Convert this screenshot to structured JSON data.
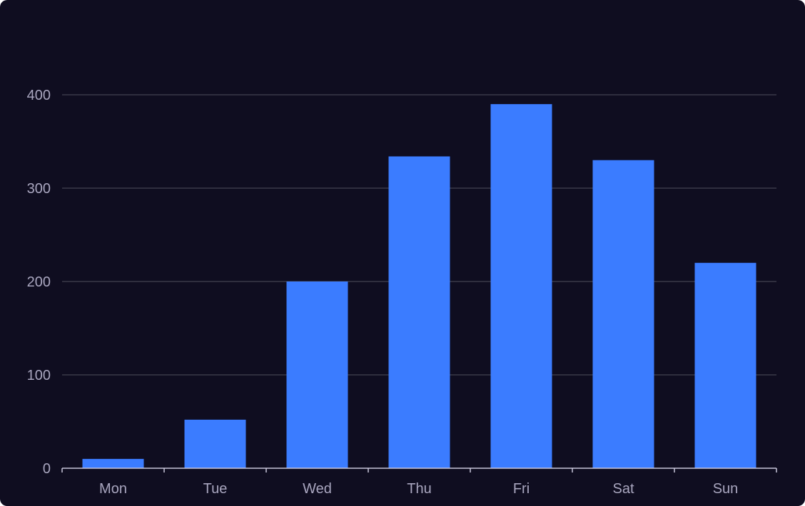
{
  "colors": {
    "background": "#0f0d20",
    "bar": "#3b7cff",
    "grid": "#3a3a48",
    "axis": "#c9c6db",
    "tick_text": "#a9a6bf"
  },
  "chart_data": {
    "type": "bar",
    "categories": [
      "Mon",
      "Tue",
      "Wed",
      "Thu",
      "Fri",
      "Sat",
      "Sun"
    ],
    "values": [
      10,
      52,
      200,
      334,
      390,
      330,
      220
    ],
    "ylim": [
      0,
      400
    ],
    "yticks": [
      0,
      100,
      200,
      300,
      400
    ],
    "ytick_labels": [
      "0",
      "100",
      "200",
      "300",
      "400"
    ],
    "grid": true,
    "title": "",
    "xlabel": "",
    "ylabel": ""
  }
}
